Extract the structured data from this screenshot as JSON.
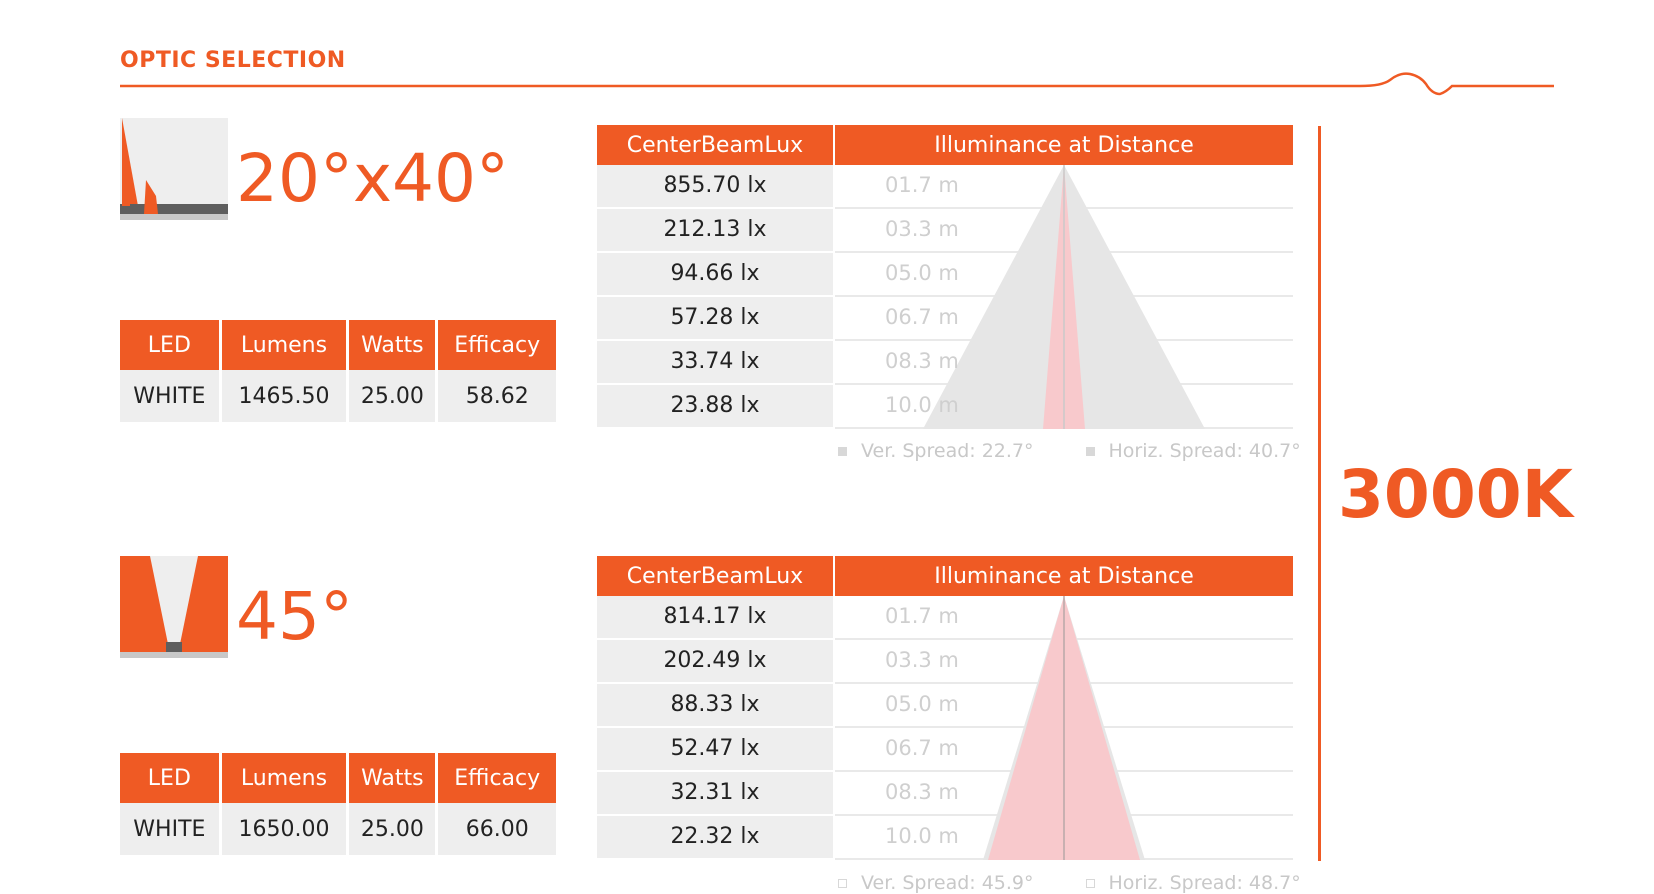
{
  "page_title": "OPTIC SELECTION",
  "color_temperature": "3000K",
  "colors": {
    "accent": "#ef5a24",
    "cell_bg": "#eeeeee",
    "vertical_beam": "#f8c9cc",
    "horizontal_beam": "#e6e6e6"
  },
  "spec_headers": [
    "LED",
    "Lumens",
    "Watts",
    "Efficacy"
  ],
  "lux_headers": {
    "center_beam": "CenterBeamLux",
    "illuminance": "Illuminance at Distance"
  },
  "optics": [
    {
      "name": "20°x40°",
      "specs": {
        "led": "WHITE",
        "lumens": "1465.50",
        "watts": "25.00",
        "efficacy": "58.62"
      },
      "rows": [
        {
          "lux": "855.70 lx",
          "distance": "01.7 m"
        },
        {
          "lux": "212.13 lx",
          "distance": "03.3 m"
        },
        {
          "lux": "94.66 lx",
          "distance": "05.0 m"
        },
        {
          "lux": "57.28 lx",
          "distance": "06.7 m"
        },
        {
          "lux": "33.74 lx",
          "distance": "08.3 m"
        },
        {
          "lux": "23.88 lx",
          "distance": "10.0 m"
        }
      ],
      "legend": {
        "vertical": "Ver. Spread: 22.7°",
        "horizontal": "Horiz. Spread: 40.7°"
      }
    },
    {
      "name": "45°",
      "specs": {
        "led": "WHITE",
        "lumens": "1650.00",
        "watts": "25.00",
        "efficacy": "66.00"
      },
      "rows": [
        {
          "lux": "814.17 lx",
          "distance": "01.7 m"
        },
        {
          "lux": "202.49 lx",
          "distance": "03.3 m"
        },
        {
          "lux": "88.33 lx",
          "distance": "05.0 m"
        },
        {
          "lux": "52.47 lx",
          "distance": "06.7 m"
        },
        {
          "lux": "32.31 lx",
          "distance": "08.3 m"
        },
        {
          "lux": "22.32 lx",
          "distance": "10.0 m"
        }
      ],
      "legend": {
        "vertical": "Ver. Spread: 45.9°",
        "horizontal": "Horiz. Spread: 48.7°"
      }
    }
  ]
}
